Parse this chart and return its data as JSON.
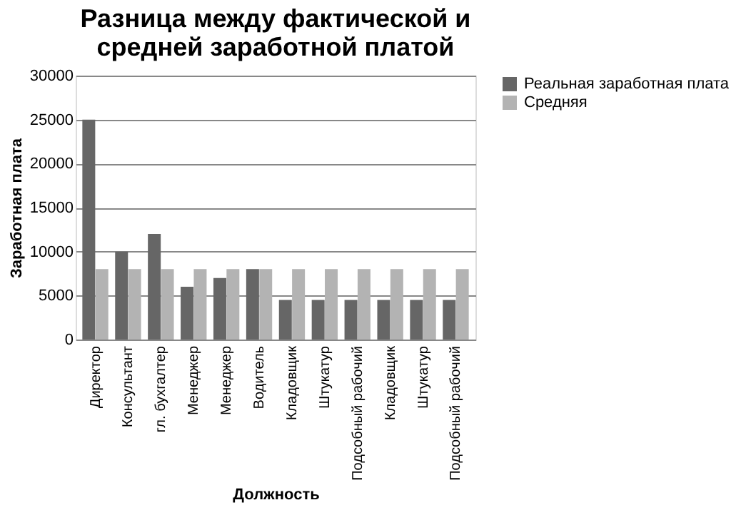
{
  "chart_data": {
    "type": "bar",
    "title": [
      "Разница между фактической и",
      "средней заработной платой"
    ],
    "xlabel": "Должность",
    "ylabel": "Заработная плата",
    "categories": [
      "Директор",
      "Консультант",
      "гл. бухгалтер",
      "Менеджер",
      "Менеджер",
      "Водитель",
      "Кладовщик",
      "Штукатур",
      "Подсобный рабочий",
      "Кладовщик",
      "Штукатур",
      "Подсобный рабочий"
    ],
    "series": [
      {
        "name": "Реальная заработная плата",
        "color": "#666666",
        "values": [
          25000,
          10000,
          12000,
          6000,
          7000,
          8000,
          4500,
          4500,
          4500,
          4500,
          4500,
          4500
        ]
      },
      {
        "name": "Средняя",
        "color": "#b3b3b3",
        "values": [
          8000,
          8000,
          8000,
          8000,
          8000,
          8000,
          8000,
          8000,
          8000,
          8000,
          8000,
          8000
        ]
      }
    ],
    "ylim": [
      0,
      30000
    ],
    "yticks": [
      0,
      5000,
      10000,
      15000,
      20000,
      25000,
      30000
    ],
    "grid": "y",
    "legend": "right"
  }
}
